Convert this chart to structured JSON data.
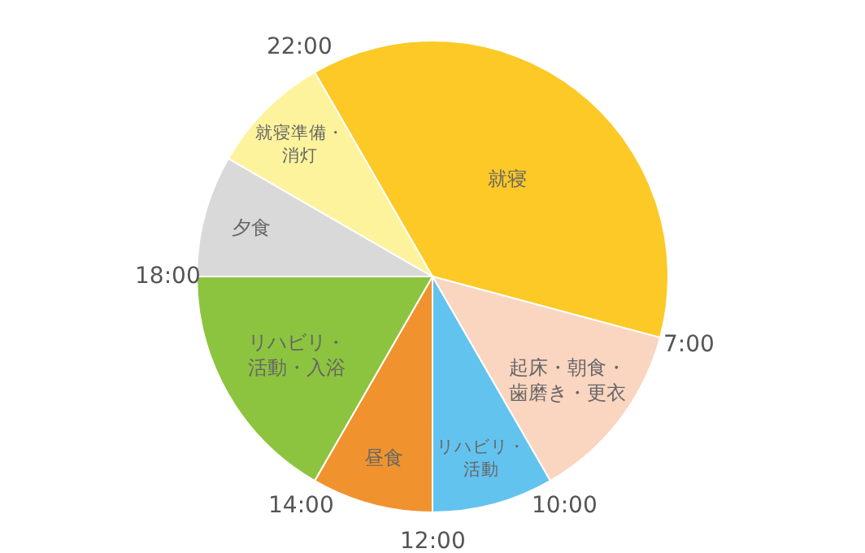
{
  "chart_data": {
    "type": "pie",
    "categories": [
      "就寝",
      "起床・朝食・歯磨き・更衣",
      "リハビリ・活動",
      "昼食",
      "リハビリ・活動・入浴",
      "夕食",
      "就寝準備・消灯"
    ],
    "values": [
      37.5,
      12.5,
      8.33,
      8.33,
      16.67,
      8.33,
      8.33
    ],
    "colors": [
      "#fcc926",
      "#fad5c0",
      "#63c3ef",
      "#f0932f",
      "#8cc43f",
      "#d9d9d9",
      "#fdf39c"
    ],
    "annotations": [
      "22:00",
      "7:00",
      "10:00",
      "12:00",
      "14:00",
      "18:00"
    ],
    "legend": false
  }
}
